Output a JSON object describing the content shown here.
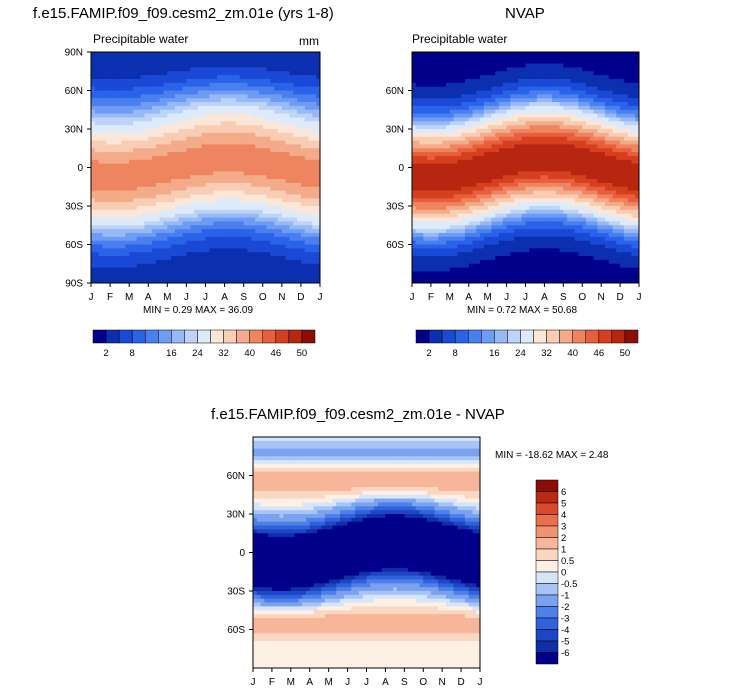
{
  "chart_data": [
    {
      "type": "heatmap",
      "title": "f.e15.FAMIP.f09_f09.cesm2_zm.01e (yrs 1-8)",
      "subtitle_left": "Precipitable water",
      "subtitle_right": "mm",
      "x_ticks": [
        "J",
        "F",
        "M",
        "A",
        "M",
        "J",
        "J",
        "A",
        "S",
        "O",
        "N",
        "D",
        "J"
      ],
      "y_ticks": [
        "90N",
        "60N",
        "30N",
        "0",
        "30S",
        "60S",
        "90S"
      ],
      "stats": "MIN =   0.29 MAX =  36.09",
      "min": 0.29,
      "max": 36.09,
      "colorbar_labels": [
        "2",
        "8",
        "16",
        "24",
        "32",
        "40",
        "46",
        "50"
      ],
      "contour_levels": [
        2,
        4,
        6,
        8,
        10,
        12,
        14,
        16,
        20,
        24,
        28,
        32,
        36,
        40,
        42,
        44,
        46,
        48,
        50
      ]
    },
    {
      "type": "heatmap",
      "title": "NVAP",
      "subtitle_left": "Precipitable water",
      "x_ticks": [
        "J",
        "F",
        "M",
        "A",
        "M",
        "J",
        "J",
        "A",
        "S",
        "O",
        "N",
        "D",
        "J"
      ],
      "y_ticks": [
        "60N",
        "30N",
        "0",
        "30S",
        "60S"
      ],
      "stats": "MIN =   0.72 MAX =  50.68",
      "min": 0.72,
      "max": 50.68,
      "colorbar_labels": [
        "2",
        "8",
        "16",
        "24",
        "32",
        "40",
        "46",
        "50"
      ],
      "contour_levels": [
        2,
        4,
        6,
        8,
        10,
        12,
        14,
        16,
        20,
        24,
        28,
        32,
        36,
        40,
        42,
        44,
        46,
        48,
        50
      ]
    },
    {
      "type": "heatmap",
      "title": "f.e15.FAMIP.f09_f09.cesm2_zm.01e - NVAP",
      "x_ticks": [
        "J",
        "F",
        "M",
        "A",
        "M",
        "J",
        "J",
        "A",
        "S",
        "O",
        "N",
        "D",
        "J"
      ],
      "y_ticks": [
        "60N",
        "30N",
        "0",
        "30S",
        "60S"
      ],
      "stats": "MIN = -18.62 MAX =   2.48",
      "min": -18.62,
      "max": 2.48,
      "colorbar_labels": [
        "6",
        "5",
        "4",
        "3",
        "2",
        "1",
        "0.5",
        "0",
        "-0.5",
        "-1",
        "-2",
        "-3",
        "-4",
        "-5",
        "-6"
      ],
      "contour_levels": [
        -6,
        -5,
        -4,
        -3,
        -2,
        -1,
        -0.5,
        0,
        0.5,
        1,
        2,
        3,
        4,
        5,
        6
      ]
    }
  ],
  "colors": {
    "seq": [
      "#00008b",
      "#0c2fb0",
      "#1a49d6",
      "#2b62ea",
      "#4a7ff0",
      "#6e9cf4",
      "#97b9f6",
      "#bdd3f7",
      "#ddeafa",
      "#fbe6da",
      "#f8cdb4",
      "#f4ab89",
      "#ef8461",
      "#e95f3d",
      "#d6401f",
      "#b82611",
      "#8c0d05"
    ],
    "diff": [
      "#00008b",
      "#0f2ea8",
      "#1d45c6",
      "#2f62dc",
      "#4e80e8",
      "#7aa2ef",
      "#a8c4f5",
      "#d5e5fa",
      "#fff0e6",
      "#fbd7c2",
      "#f7b69a",
      "#f09371",
      "#e8704d",
      "#d9492c",
      "#b82a14",
      "#8c0d05"
    ]
  }
}
